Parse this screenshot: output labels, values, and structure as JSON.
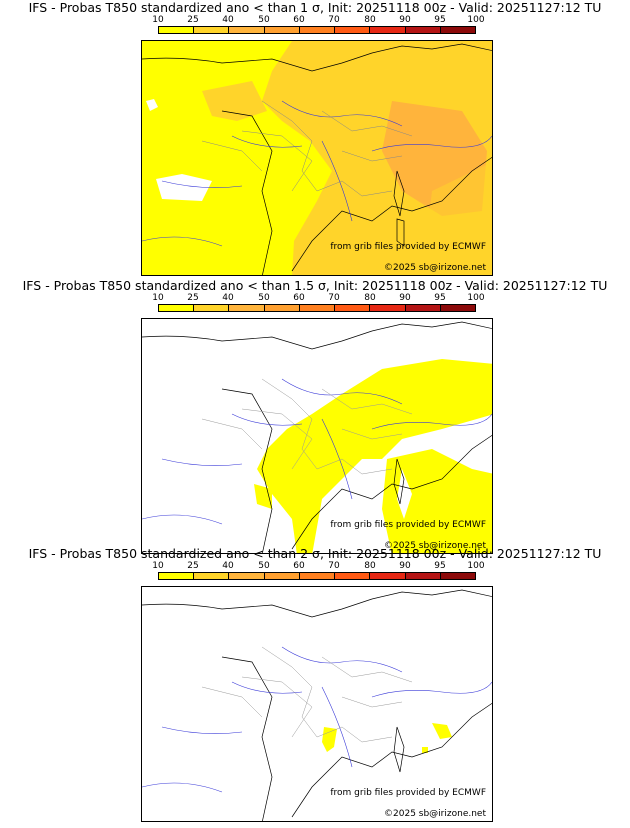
{
  "scale": {
    "ticks": [
      "10",
      "25",
      "40",
      "50",
      "60",
      "70",
      "80",
      "90",
      "95",
      "100"
    ],
    "colors": [
      "#ffff00",
      "#ffd42a",
      "#ffb43c",
      "#ffa030",
      "#ff8020",
      "#ff5a14",
      "#e62814",
      "#b41414",
      "#8c0a0a",
      "#5a0000"
    ]
  },
  "panels": [
    {
      "title": "IFS - Probas T850  standardized ano < than 1 σ, Init: 20251118 00z - Valid: 20251127:12 TU",
      "credit_source": "from grib files provided by ECMWF",
      "credit_site": "©2025 sb@irizone.net",
      "probability_pattern": "widespread 10-25%, 25-40% over east and south"
    },
    {
      "title": "IFS - Probas T850  standardized ano < than 1.5 σ, Init: 20251118 00z - Valid: 20251127:12 TU",
      "credit_source": "from grib files provided by ECMWF",
      "credit_site": "©2025 sb@irizone.net",
      "probability_pattern": "10-25% band from central France to the east and south-east"
    },
    {
      "title": "IFS - Probas T850  standardized ano < than 2 σ, Init: 20251118 00z - Valid: 20251127:12 TU",
      "credit_source": "from grib files provided by ECMWF",
      "credit_site": "©2025 sb@irizone.net",
      "probability_pattern": "small 10-25% patches near the Ligurian coast and central Italy"
    }
  ]
}
